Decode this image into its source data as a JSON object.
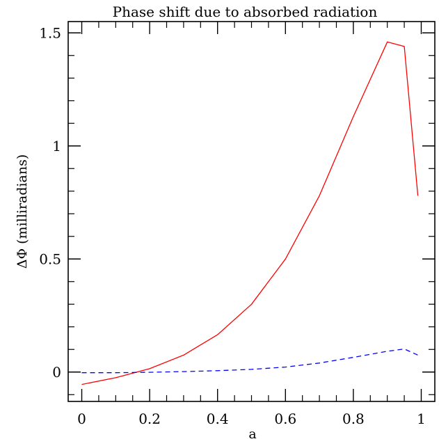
{
  "chart_data": {
    "type": "line",
    "title": "Phase shift due to absorbed radiation",
    "xlabel": "a",
    "ylabel": "ΔΦ (milliradians)",
    "xlim": [
      -0.04,
      1.04
    ],
    "ylim": [
      -0.13,
      1.55
    ],
    "xticks": [
      0,
      0.2,
      0.4,
      0.6,
      0.8,
      1
    ],
    "xtick_labels": [
      "0",
      "0.2",
      "0.4",
      "0.6",
      "0.8",
      "1"
    ],
    "xminor_step": 0.05,
    "yticks": [
      0,
      0.5,
      1,
      1.5
    ],
    "ytick_labels": [
      "0",
      "0.5",
      "1",
      "1.5"
    ],
    "yminor_step": 0.1,
    "grid": false,
    "series": [
      {
        "color": "#ff0000",
        "style": "solid",
        "x": [
          0,
          0.1,
          0.2,
          0.3,
          0.4,
          0.5,
          0.6,
          0.7,
          0.8,
          0.9,
          0.95,
          0.99
        ],
        "y": [
          -0.055,
          -0.025,
          0.015,
          0.075,
          0.165,
          0.3,
          0.5,
          0.78,
          1.13,
          1.46,
          1.44,
          0.78
        ]
      },
      {
        "color": "#0000ff",
        "style": "dashed",
        "x": [
          0,
          0.1,
          0.2,
          0.3,
          0.4,
          0.5,
          0.6,
          0.7,
          0.8,
          0.9,
          0.95,
          0.99
        ],
        "y": [
          -0.003,
          -0.003,
          -0.001,
          0.002,
          0.006,
          0.012,
          0.022,
          0.04,
          0.065,
          0.092,
          0.102,
          0.075
        ]
      }
    ]
  }
}
